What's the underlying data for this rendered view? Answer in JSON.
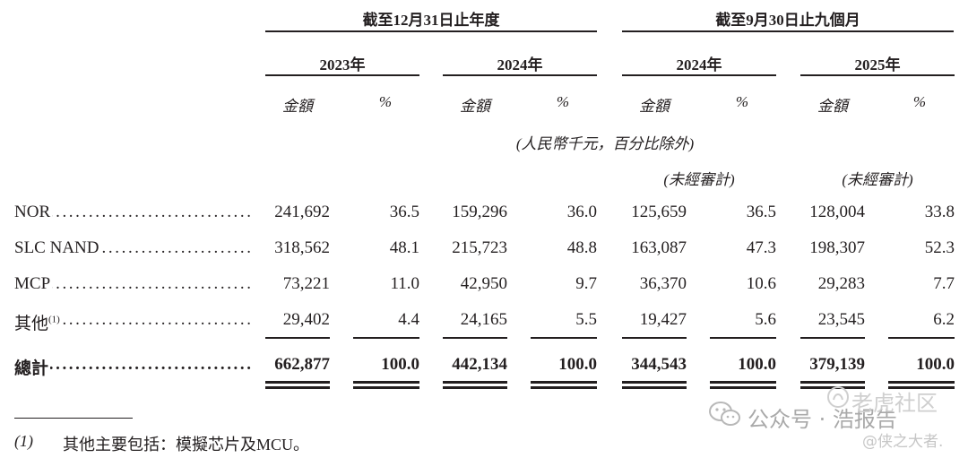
{
  "header": {
    "group1": "截至12月31日止年度",
    "group2": "截至9月30日止九個月",
    "years": [
      "2023年",
      "2024年",
      "2024年",
      "2025年"
    ],
    "amount_label": "金額",
    "pct_label": "%",
    "unit_note": "(人民幣千元，百分比除外)",
    "unaudited": "(未經審計)"
  },
  "rows": [
    {
      "label": "NOR",
      "sup": "",
      "values": [
        "241,692",
        "36.5",
        "159,296",
        "36.0",
        "125,659",
        "36.5",
        "128,004",
        "33.8"
      ]
    },
    {
      "label": "SLC NAND",
      "sup": "",
      "values": [
        "318,562",
        "48.1",
        "215,723",
        "48.8",
        "163,087",
        "47.3",
        "198,307",
        "52.3"
      ]
    },
    {
      "label": "MCP",
      "sup": "",
      "values": [
        "73,221",
        "11.0",
        "42,950",
        "9.7",
        "36,370",
        "10.6",
        "29,283",
        "7.7"
      ]
    },
    {
      "label": "其他",
      "sup": "(1)",
      "values": [
        "29,402",
        "4.4",
        "24,165",
        "5.5",
        "19,427",
        "5.6",
        "23,545",
        "6.2"
      ]
    }
  ],
  "total": {
    "label": "總計",
    "values": [
      "662,877",
      "100.0",
      "442,134",
      "100.0",
      "344,543",
      "100.0",
      "379,139",
      "100.0"
    ]
  },
  "footnote": {
    "marker": "(1)",
    "text": "其他主要包括：模擬芯片及MCU。"
  },
  "watermark": {
    "line1": "公众号 · 浩报告",
    "line2": "老虎社区",
    "line3": "@侠之大者."
  }
}
